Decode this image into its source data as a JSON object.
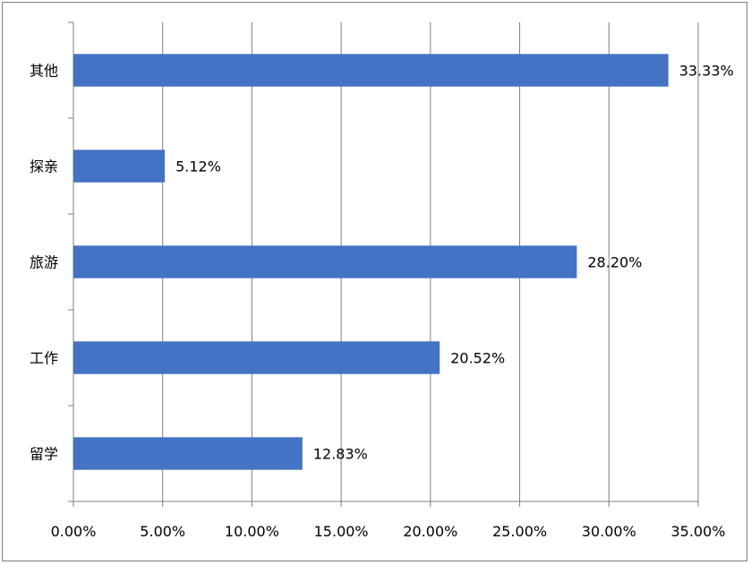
{
  "chart_data": {
    "type": "bar",
    "orientation": "horizontal",
    "categories": [
      "其他",
      "探亲",
      "旅游",
      "工作",
      "留学"
    ],
    "values": [
      33.33,
      5.12,
      28.2,
      20.52,
      12.83
    ],
    "data_labels": [
      "33.33%",
      "5.12%",
      "28.20%",
      "20.52%",
      "12.83%"
    ],
    "x_ticks": [
      "0.00%",
      "5.00%",
      "10.00%",
      "15.00%",
      "20.00%",
      "25.00%",
      "30.00%",
      "35.00%"
    ],
    "xlim": [
      0,
      35
    ],
    "title": "",
    "xlabel": "",
    "ylabel": "",
    "grid": "vertical",
    "legend": "none",
    "bar_color": "#4472c4",
    "gridline_color": "#7f7f7f"
  }
}
